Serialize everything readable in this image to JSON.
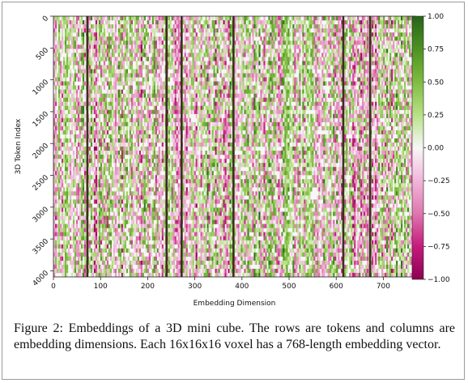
{
  "chart_data": {
    "type": "heatmap",
    "title": "",
    "xlabel": "Embedding Dimension",
    "ylabel": "3D Token Index",
    "x_range": [
      0,
      768
    ],
    "y_range": [
      0,
      4096
    ],
    "y_inverted": true,
    "x_ticks": [
      "0",
      "100",
      "200",
      "300",
      "400",
      "500",
      "600",
      "700"
    ],
    "y_ticks": [
      "0",
      "500",
      "1000",
      "1500",
      "2000",
      "2500",
      "3000",
      "3500",
      "4000"
    ],
    "colorbar": {
      "colormap": "PiYG",
      "vmin": -1.0,
      "vmax": 1.0,
      "ticks": [
        "1.00",
        "0.75",
        "0.50",
        "0.25",
        "0.00",
        "−0.25",
        "−0.50",
        "−0.75",
        "−1.00"
      ]
    },
    "dark_columns": [
      72,
      240,
      272,
      382,
      615,
      672
    ],
    "grid": false
  },
  "caption": "Figure 2: Embeddings of a 3D mini cube. The rows are tokens and columns are embedding dimensions. Each 16x16x16 voxel has a 768-length embedding vector.",
  "colors": {
    "pink": "#8e0152",
    "white": "#f7f7f7",
    "green": "#276419"
  }
}
